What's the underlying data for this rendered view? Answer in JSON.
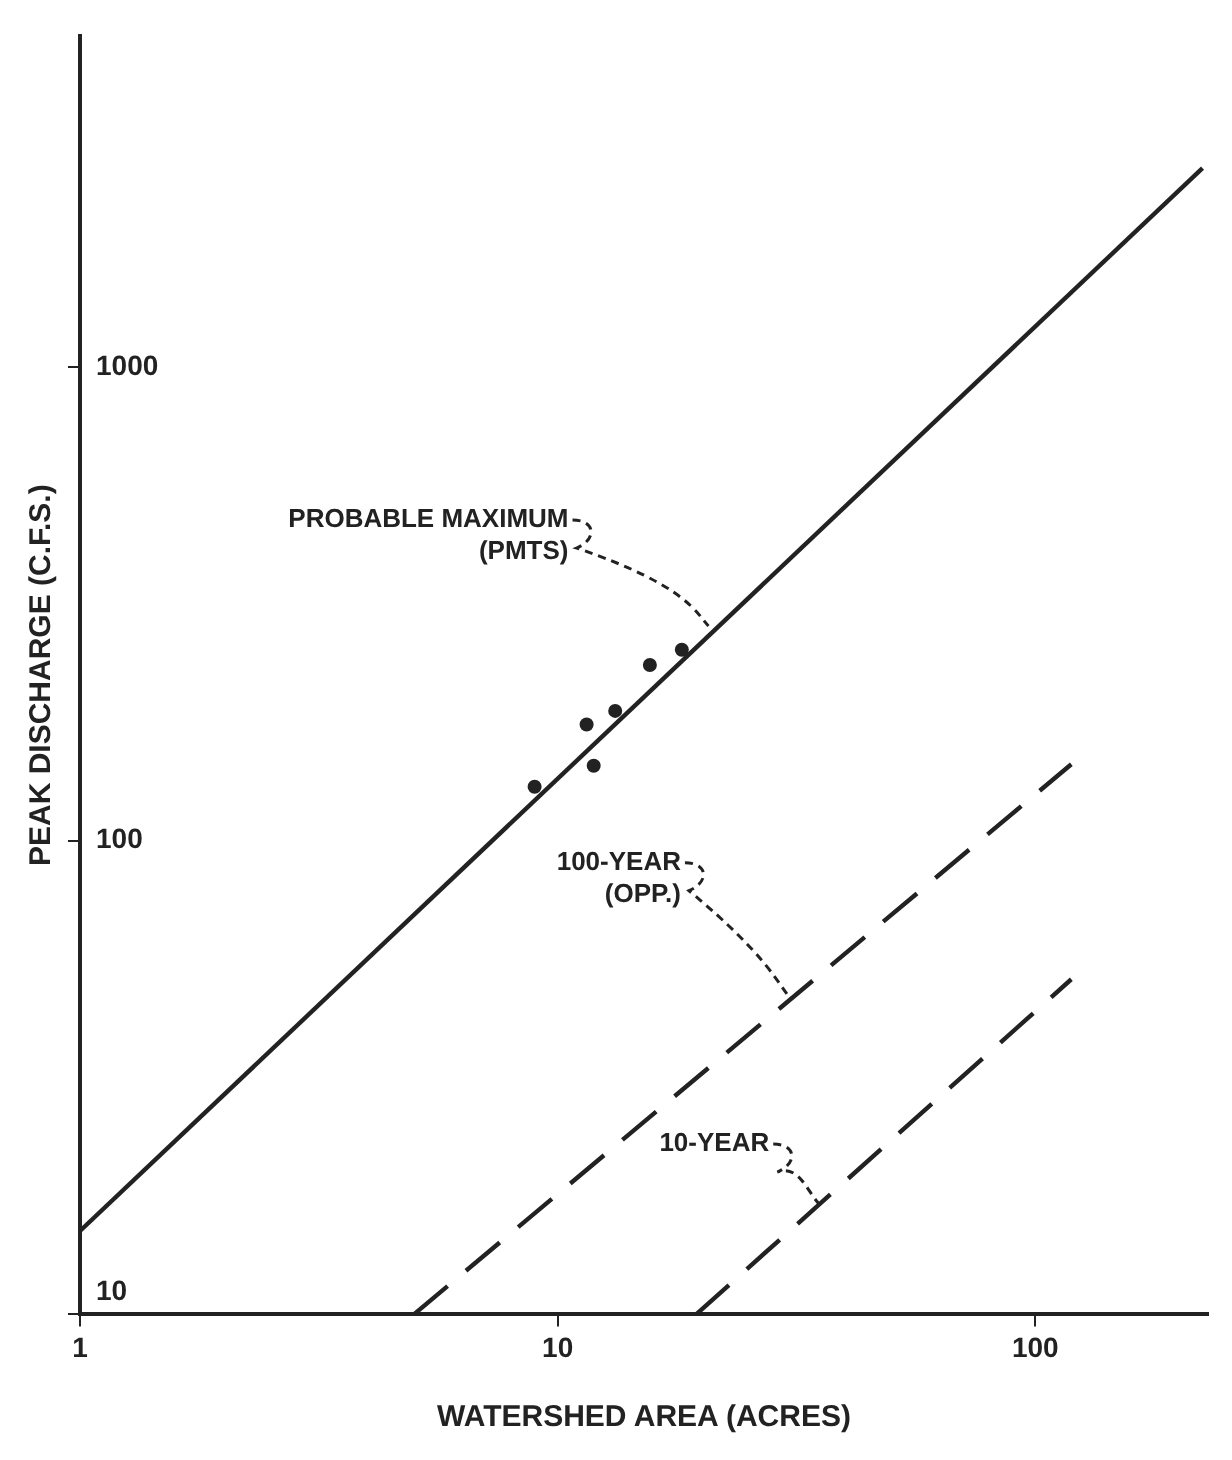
{
  "chart_data": {
    "type": "line",
    "xlabel": "WATERSHED AREA (ACRES)",
    "ylabel": "PEAK DISCHARGE (C.F.S.)",
    "log": "xy",
    "grid": false,
    "legend": false,
    "xlim": [
      1,
      230
    ],
    "xticks": [
      1,
      10,
      100
    ],
    "ylim": [
      10,
      5000
    ],
    "yticks": [
      10,
      100,
      1000
    ],
    "series": [
      {
        "color": "#222222",
        "line_style": "solid",
        "marker": "none",
        "x": [
          1,
          224
        ],
        "values": [
          15,
          2630
        ]
      },
      {
        "color": "#222222",
        "line_style": "dashed",
        "marker": "none",
        "x": [
          5,
          119
        ],
        "values": [
          10,
          145
        ]
      },
      {
        "color": "#222222",
        "line_style": "dashed",
        "marker": "none",
        "x": [
          19.5,
          119
        ],
        "values": [
          10,
          51
        ]
      },
      {
        "type": "scatter",
        "color": "#222222",
        "marker": "circle",
        "x": [
          8.95,
          11.5,
          11.9,
          13.2,
          15.6,
          18.2
        ],
        "values": [
          130,
          176,
          144,
          188,
          235,
          253
        ]
      }
    ],
    "annotations": [
      {
        "text": "PROBABLE MAXIMUM\n(PMTS)",
        "x": 20.7,
        "y": 284
      },
      {
        "text": "100-YEAR\n(OPP.)",
        "x": 30.8,
        "y": 46.4
      },
      {
        "text": "10-YEAR",
        "x": 35.3,
        "y": 17.1
      }
    ]
  }
}
